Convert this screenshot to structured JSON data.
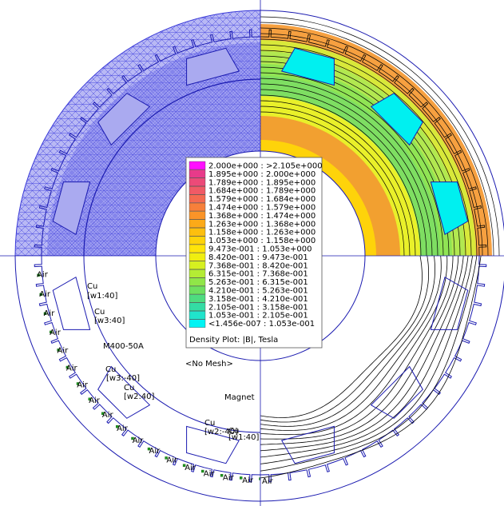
{
  "legend": {
    "title": "Density Plot: |B|, Tesla",
    "entries": [
      {
        "range": "2.000e+000 : >2.105e+000",
        "color": "#ff10ff"
      },
      {
        "range": "1.895e+000 : 2.000e+000",
        "color": "#e83a8a"
      },
      {
        "range": "1.789e+000 : 1.895e+000",
        "color": "#ec4a78"
      },
      {
        "range": "1.684e+000 : 1.789e+000",
        "color": "#f05a66"
      },
      {
        "range": "1.579e+000 : 1.684e+000",
        "color": "#f46a50"
      },
      {
        "range": "1.474e+000 : 1.579e+000",
        "color": "#f7803a"
      },
      {
        "range": "1.368e+000 : 1.474e+000",
        "color": "#fa9428"
      },
      {
        "range": "1.263e+000 : 1.368e+000",
        "color": "#fcaa18"
      },
      {
        "range": "1.158e+000 : 1.263e+000",
        "color": "#fdbf0e"
      },
      {
        "range": "1.053e+000 : 1.158e+000",
        "color": "#fed30a"
      },
      {
        "range": "9.473e-001 : 1.053e+000",
        "color": "#ffe40a"
      },
      {
        "range": "8.420e-001 : 9.473e-001",
        "color": "#f0ee10"
      },
      {
        "range": "7.368e-001 : 8.420e-001",
        "color": "#d6f020"
      },
      {
        "range": "6.315e-001 : 7.368e-001",
        "color": "#b4ec34"
      },
      {
        "range": "5.263e-001 : 6.315e-001",
        "color": "#90e648"
      },
      {
        "range": "4.210e-001 : 5.263e-001",
        "color": "#6ee060"
      },
      {
        "range": "3.158e-001 : 4.210e-001",
        "color": "#4edc80"
      },
      {
        "range": "2.105e-001 : 3.158e-001",
        "color": "#34dca4"
      },
      {
        "range": "1.053e-001 : 2.105e-001",
        "color": "#20e4cc"
      },
      {
        "range": "<1.456e-007 : 1.053e-001",
        "color": "#00f4f4"
      }
    ]
  },
  "labels": {
    "cu": "Cu",
    "air": "Air",
    "w1_pos": "[w1:40]",
    "w3_pos": "[w3:40]",
    "w3_neg": "[w3:-40]",
    "w2_pos": "[w2:40]",
    "w2_neg": "[w2:-40]",
    "w1_pos_b": "[w1:40]",
    "material": "M400-50A",
    "no_mesh": "<No Mesh>",
    "magnet": "Magnet"
  },
  "colors": {
    "mesh": "#3a3ad8",
    "geometry": "#1a1ab0",
    "flux_line": "#000000",
    "node_marker": "#1f9a1f"
  }
}
